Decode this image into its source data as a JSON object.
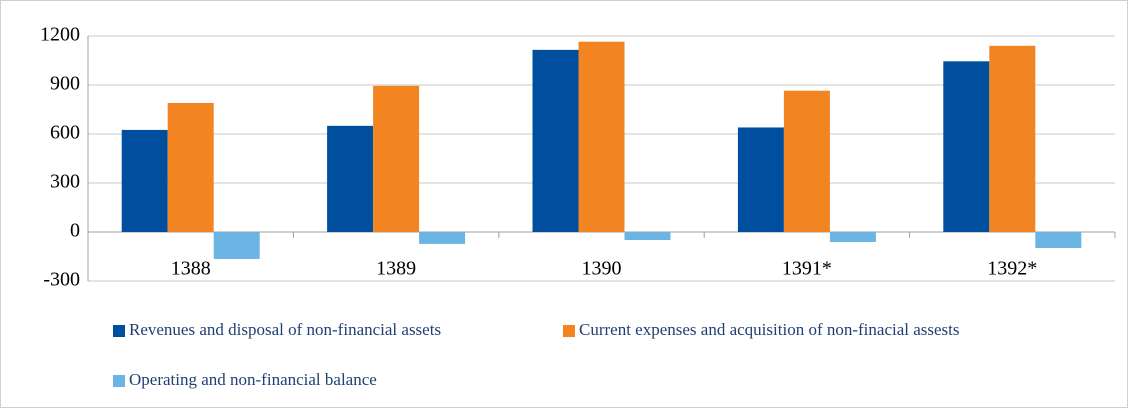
{
  "chart_data": {
    "type": "bar",
    "categories": [
      "1388",
      "1389",
      "1390",
      "1391*",
      "1392*"
    ],
    "series": [
      {
        "name": "Revenues and disposal of non-financial assets",
        "color": "#004f9f",
        "values": [
          625,
          650,
          1115,
          640,
          1045
        ]
      },
      {
        "name": "Current expenses and acquisition of non-finacial assests",
        "color": "#f28522",
        "values": [
          790,
          895,
          1165,
          865,
          1140
        ]
      },
      {
        "name": "Operating and non-financial balance",
        "color": "#6cb4e4",
        "values": [
          -165,
          -73,
          -49,
          -61,
          -98
        ]
      }
    ],
    "ylim": [
      -300,
      1200
    ],
    "yticks": [
      -300,
      0,
      300,
      600,
      900,
      1200
    ],
    "grid": true,
    "legend": "bottom"
  }
}
